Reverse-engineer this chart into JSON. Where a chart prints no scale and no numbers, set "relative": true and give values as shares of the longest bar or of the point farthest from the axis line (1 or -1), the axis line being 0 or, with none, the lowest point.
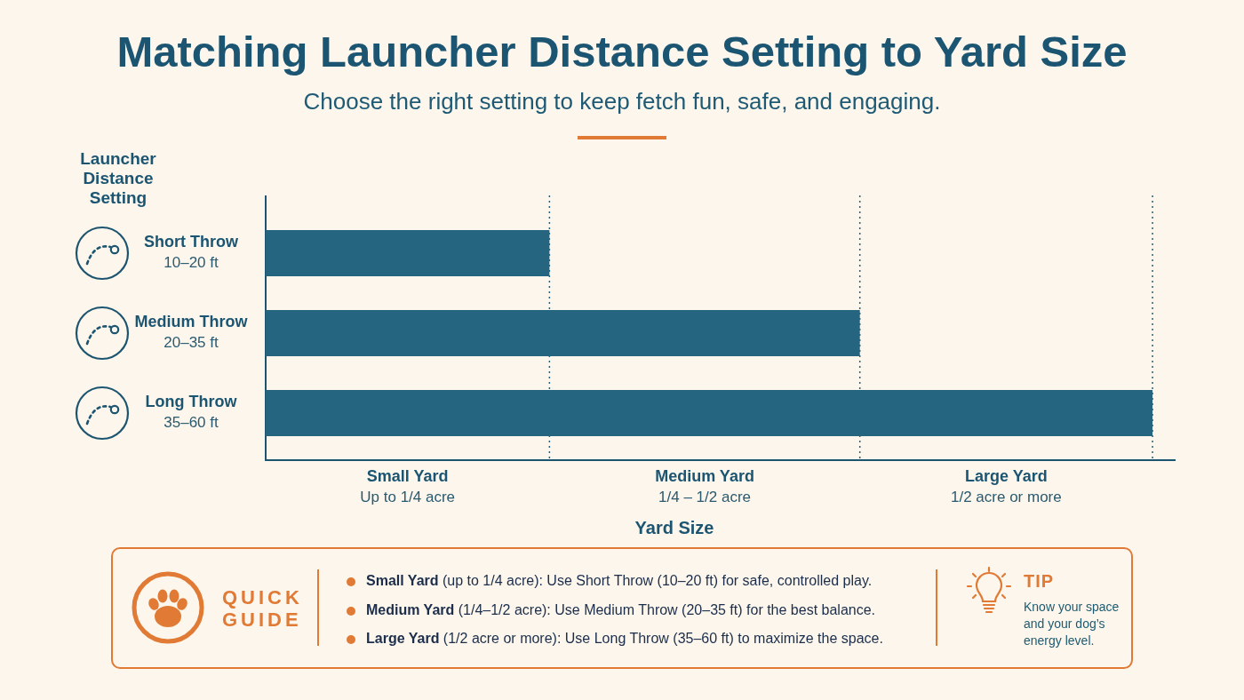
{
  "chart_data": {
    "type": "bar",
    "title": "Matching Launcher Distance Setting to Yard Size",
    "subtitle": "Choose the right setting to keep fetch fun, safe, and engaging.",
    "orientation": "horizontal",
    "relative": true,
    "ylabel": "Launcher Distance Setting",
    "xlabel": "Yard Size",
    "categories": [
      "Short Throw\n10–20 ft",
      "Medium Throw\n20–35 ft",
      "Long Throw\n35–60 ft"
    ],
    "values": [
      0.32,
      0.67,
      1
    ],
    "color": "#25657f",
    "ref_lines": [
      {
        "axis": "x",
        "value": 0.32,
        "line_style": "dotted",
        "color": "#2a5f78"
      },
      {
        "axis": "x",
        "value": 0.67,
        "line_style": "dotted",
        "color": "#2a5f78"
      },
      {
        "axis": "x",
        "value": 1,
        "line_style": "dotted",
        "color": "#2a5f78"
      }
    ],
    "annotations": [
      "Small Yard\nUp to 1/4 acre",
      "Medium Yard\n1/4 – 1/2 acre",
      "Large Yard\n1/2 acre or more",
      "QUICK GUIDE",
      "Small Yard (up to 1/4 acre): Use Short Throw (10–20 ft) for safe, controlled play.",
      "Medium Yard (1/4–1/2 acre): Use Medium Throw (20–35 ft) for the best balance.",
      "Large Yard (1/2 acre or more): Use Long Throw (35–60 ft) to maximize the space.",
      "TIP",
      "Know your space and your dog’s energy level."
    ]
  }
}
